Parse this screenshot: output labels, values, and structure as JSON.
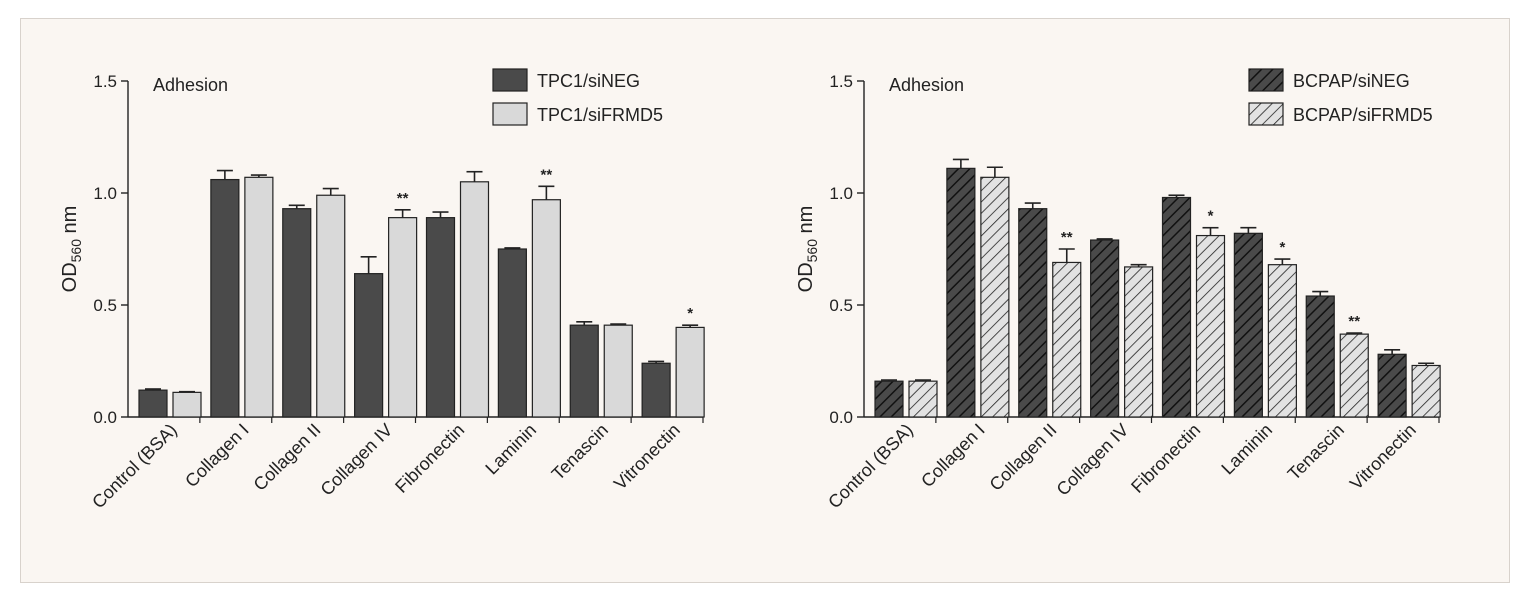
{
  "chart_data": [
    {
      "type": "bar",
      "annotation": "Adhesion",
      "ylabel": {
        "main": "OD",
        "sub": "560",
        "unit": " nm"
      },
      "ylim": [
        0,
        1.5
      ],
      "yticks": [
        "0.0",
        "0.5",
        "1.0",
        "1.5"
      ],
      "categories": [
        "Control (BSA)",
        "Collagen I",
        "Collagen II",
        "Collagen IV",
        "Fibronectin",
        "Laminin",
        "Tenascin",
        "Vitronectin"
      ],
      "series": [
        {
          "name": "TPC1/siNEG",
          "color": "#4a4a4a",
          "pattern": "solid",
          "values": [
            0.12,
            1.06,
            0.93,
            0.64,
            0.89,
            0.75,
            0.41,
            0.24
          ],
          "errors": [
            0.005,
            0.04,
            0.015,
            0.075,
            0.025,
            0.005,
            0.015,
            0.008
          ]
        },
        {
          "name": "TPC1/siFRMD5",
          "color": "#d9d9d9",
          "pattern": "solid",
          "values": [
            0.11,
            1.07,
            0.99,
            0.89,
            1.05,
            0.97,
            0.41,
            0.4
          ],
          "errors": [
            0.003,
            0.01,
            0.03,
            0.035,
            0.045,
            0.06,
            0.005,
            0.01
          ]
        }
      ],
      "significance": [
        "",
        "",
        "",
        "**",
        "",
        "**",
        "",
        "*"
      ],
      "legend_position": "top-right"
    },
    {
      "type": "bar",
      "annotation": "Adhesion",
      "ylabel": {
        "main": "OD",
        "sub": "560",
        "unit": " nm"
      },
      "ylim": [
        0,
        1.5
      ],
      "yticks": [
        "0.0",
        "0.5",
        "1.0",
        "1.5"
      ],
      "categories": [
        "Control (BSA)",
        "Collagen I",
        "Collagen II",
        "Collagen IV",
        "Fibronectin",
        "Laminin",
        "Tenascin",
        "Vitronectin"
      ],
      "series": [
        {
          "name": "BCPAP/siNEG",
          "color": "#4a4a4a",
          "pattern": "hatch-dark",
          "values": [
            0.16,
            1.11,
            0.93,
            0.79,
            0.98,
            0.82,
            0.54,
            0.28
          ],
          "errors": [
            0.005,
            0.04,
            0.025,
            0.005,
            0.01,
            0.025,
            0.02,
            0.02
          ]
        },
        {
          "name": "BCPAP/siFRMD5",
          "color": "#d9d9d9",
          "pattern": "hatch-light",
          "values": [
            0.16,
            1.07,
            0.69,
            0.67,
            0.81,
            0.68,
            0.37,
            0.23
          ],
          "errors": [
            0.005,
            0.045,
            0.06,
            0.01,
            0.035,
            0.025,
            0.005,
            0.01
          ]
        }
      ],
      "significance": [
        "",
        "",
        "**",
        "",
        "*",
        "*",
        "**",
        ""
      ],
      "legend_position": "top-right"
    }
  ]
}
